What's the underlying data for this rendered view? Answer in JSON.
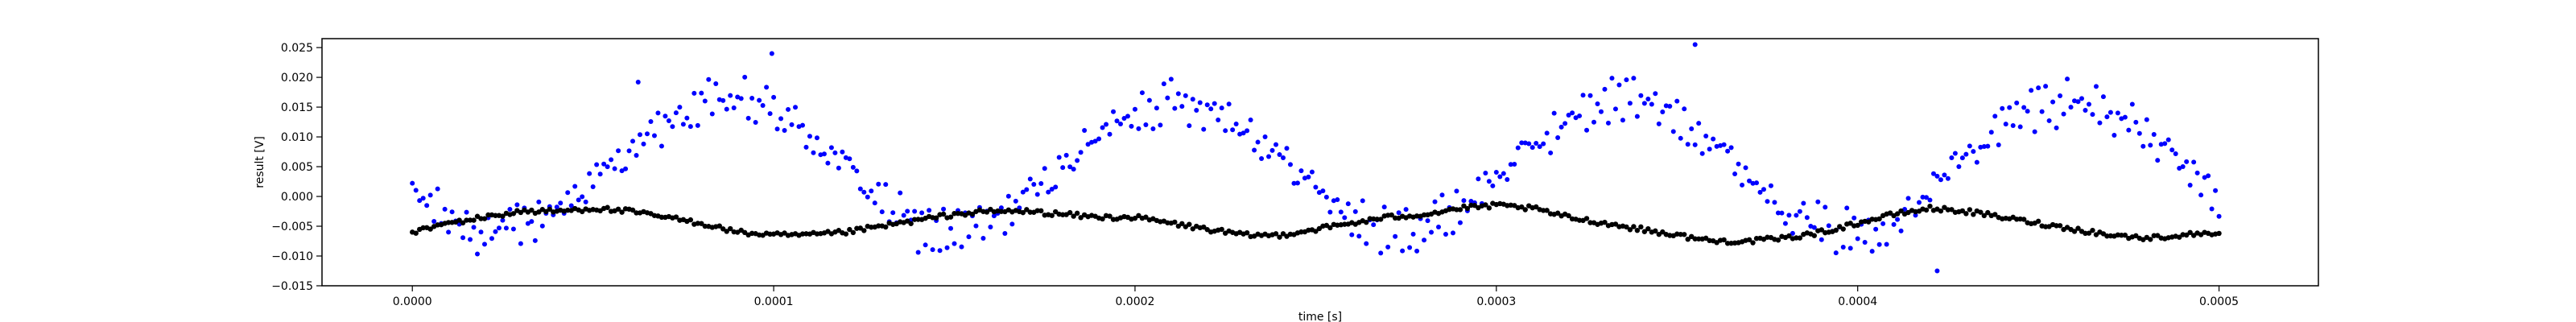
{
  "chart_data": {
    "type": "scatter",
    "title": "",
    "xlabel": "time [s]",
    "ylabel": "result [V]",
    "xlim": [
      -2.5e-05,
      0.0005275
    ],
    "ylim": [
      -0.015,
      0.0265
    ],
    "xticks": [
      0.0,
      0.0001,
      0.0002,
      0.0003,
      0.0004,
      0.0005
    ],
    "xtick_labels": [
      "0.0000",
      "0.0001",
      "0.0002",
      "0.0003",
      "0.0004",
      "0.0005"
    ],
    "yticks": [
      -0.015,
      -0.01,
      -0.005,
      0.0,
      0.005,
      0.01,
      0.015,
      0.02,
      0.025
    ],
    "ytick_labels": [
      "−0.015",
      "−0.010",
      "−0.005",
      "0.000",
      "0.005",
      "0.010",
      "0.015",
      "0.020",
      "0.025"
    ],
    "grid": false,
    "legend": "none",
    "samples_per_series": 500,
    "series": [
      {
        "color": "#0000ff",
        "marker": "dot",
        "description": "two sine-like tracks, period ~0.000122 s, amplitude ~0.013 V, offset ~0.005 V, one track slightly taller than the other",
        "x": [
          0.0,
          1e-05,
          2e-05,
          3e-05,
          4e-05,
          5e-05,
          6e-05,
          7e-05,
          8e-05,
          9e-05,
          0.0001,
          0.00011,
          0.00012,
          0.00013,
          0.00014,
          0.00015,
          0.00016,
          0.00017,
          0.00018,
          0.00019,
          0.0002,
          0.00021,
          0.00022,
          0.00023,
          0.00024,
          0.00025,
          0.00026,
          0.00027,
          0.00028,
          0.00029,
          0.0003,
          0.00031,
          0.00032,
          0.00033,
          0.00034,
          0.00035,
          0.00036,
          0.00037,
          0.00038,
          0.00039,
          0.0004,
          0.00041,
          0.00042,
          0.00043,
          0.00044,
          0.00045,
          0.00046,
          0.00047,
          0.00048,
          0.00049,
          0.0005
        ],
        "y": [
          0.0,
          -0.005,
          -0.008,
          -0.007,
          -0.003,
          0.002,
          0.008,
          0.013,
          0.017,
          0.018,
          0.016,
          0.011,
          0.005,
          -0.002,
          -0.007,
          -0.008,
          -0.006,
          -0.001,
          0.005,
          0.011,
          0.016,
          0.018,
          0.017,
          0.013,
          0.007,
          0.001,
          -0.005,
          -0.008,
          -0.007,
          -0.003,
          0.003,
          0.009,
          0.014,
          0.018,
          0.018,
          0.015,
          0.01,
          0.003,
          -0.003,
          -0.007,
          -0.008,
          -0.005,
          0.001,
          0.007,
          0.013,
          0.017,
          0.018,
          0.016,
          0.011,
          0.005,
          -0.002
        ],
        "outliers": [
          [
            9.95e-05,
            0.024
          ],
          [
            0.000355,
            0.0255
          ],
          [
            0.000422,
            -0.0125
          ],
          [
            6.25e-05,
            0.0192
          ]
        ]
      },
      {
        "color": "#000000",
        "marker": "dot",
        "description": "slow wandering trace centred around ~-0.004 V",
        "x": [
          0.0,
          1e-05,
          2e-05,
          3e-05,
          4e-05,
          5e-05,
          6e-05,
          7e-05,
          8e-05,
          9e-05,
          0.0001,
          0.00011,
          0.00012,
          0.00013,
          0.00014,
          0.00015,
          0.00016,
          0.00017,
          0.00018,
          0.00019,
          0.0002,
          0.00021,
          0.00022,
          0.00023,
          0.00024,
          0.00025,
          0.00026,
          0.00027,
          0.00028,
          0.00029,
          0.0003,
          0.00031,
          0.00032,
          0.00033,
          0.00034,
          0.00035,
          0.00036,
          0.00037,
          0.00038,
          0.00039,
          0.0004,
          0.00041,
          0.00042,
          0.00043,
          0.00044,
          0.00045,
          0.00046,
          0.00047,
          0.00048,
          0.00049,
          0.0005
        ],
        "y": [
          -0.006,
          -0.0045,
          -0.0035,
          -0.0025,
          -0.0025,
          -0.002,
          -0.0025,
          -0.0035,
          -0.0045,
          -0.006,
          -0.0065,
          -0.0065,
          -0.006,
          -0.005,
          -0.004,
          -0.003,
          -0.0025,
          -0.0025,
          -0.003,
          -0.0035,
          -0.0035,
          -0.0045,
          -0.0055,
          -0.0065,
          -0.0065,
          -0.0055,
          -0.0045,
          -0.0035,
          -0.003,
          -0.002,
          -0.0015,
          -0.002,
          -0.0035,
          -0.0045,
          -0.0055,
          -0.0065,
          -0.0075,
          -0.0075,
          -0.007,
          -0.006,
          -0.0045,
          -0.003,
          -0.002,
          -0.0025,
          -0.0035,
          -0.0045,
          -0.0055,
          -0.0065,
          -0.007,
          -0.0065,
          -0.006
        ]
      }
    ]
  }
}
